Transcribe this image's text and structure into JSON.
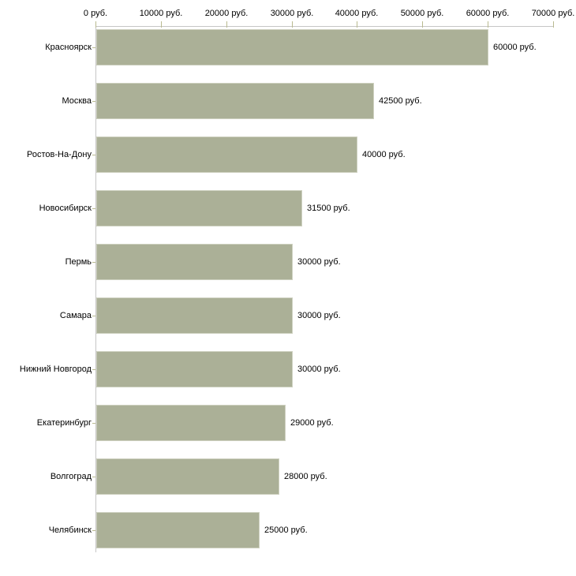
{
  "chart_data": {
    "type": "bar",
    "orientation": "horizontal",
    "title": "",
    "xlabel": "",
    "ylabel": "",
    "xlim": [
      0,
      70000
    ],
    "grid": false,
    "legend": false,
    "x_axis": {
      "position": "top",
      "ticks": [
        {
          "value": 0,
          "label": "0 руб."
        },
        {
          "value": 10000,
          "label": "10000 руб."
        },
        {
          "value": 20000,
          "label": "20000 руб."
        },
        {
          "value": 30000,
          "label": "30000 руб."
        },
        {
          "value": 40000,
          "label": "40000 руб."
        },
        {
          "value": 50000,
          "label": "50000 руб."
        },
        {
          "value": 60000,
          "label": "60000 руб."
        },
        {
          "value": 70000,
          "label": "70000 руб."
        }
      ]
    },
    "bars": [
      {
        "category": "Красноярск",
        "value": 60000,
        "value_label": "60000 руб."
      },
      {
        "category": "Москва",
        "value": 42500,
        "value_label": "42500 руб."
      },
      {
        "category": "Ростов-На-Дону",
        "value": 40000,
        "value_label": "40000 руб."
      },
      {
        "category": "Новосибирск",
        "value": 31500,
        "value_label": "31500 руб."
      },
      {
        "category": "Пермь",
        "value": 30000,
        "value_label": "30000 руб."
      },
      {
        "category": "Самара",
        "value": 30000,
        "value_label": "30000 руб."
      },
      {
        "category": "Нижний Новгород",
        "value": 30000,
        "value_label": "30000 руб."
      },
      {
        "category": "Екатеринбург",
        "value": 29000,
        "value_label": "29000 руб."
      },
      {
        "category": "Волгоград",
        "value": 28000,
        "value_label": "28000 руб."
      },
      {
        "category": "Челябинск",
        "value": 25000,
        "value_label": "25000 руб."
      }
    ],
    "colors": {
      "bar_fill": "#abb097",
      "bar_border": "#cdd0bf",
      "axis_line": "#c6c6c6",
      "tick_mark": "#b9ba90",
      "text": "#000000",
      "background": "#ffffff"
    }
  }
}
